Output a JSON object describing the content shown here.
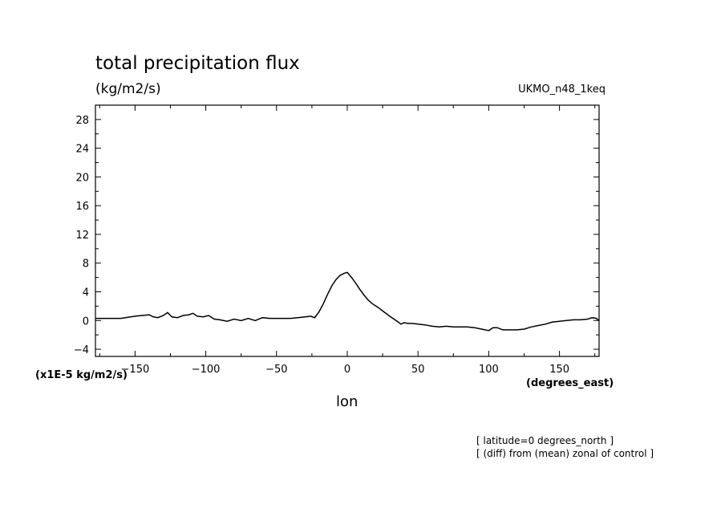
{
  "chart_data": {
    "type": "line",
    "title": "total precipitation flux",
    "units_label": "(kg/m2/s)",
    "model_label": "UKMO_n48_1keq",
    "xlabel": "lon",
    "x_units_label": "(degrees_east)",
    "y_scale_note": "(x1E-5 kg/m2/s)",
    "annotations": [
      "[ latitude=0 degrees_north ]",
      "[ (diff) from (mean) zonal of control ]"
    ],
    "xlim": [
      -178,
      178
    ],
    "ylim": [
      -5,
      30
    ],
    "xticks": [
      -150,
      -100,
      -50,
      0,
      50,
      100,
      150
    ],
    "xtick_labels": [
      "-150",
      "-100",
      "-50",
      "0",
      "50",
      "100",
      "150"
    ],
    "yticks": [
      -4,
      0,
      4,
      8,
      12,
      16,
      20,
      24,
      28
    ],
    "ytick_labels": [
      "-4",
      "0",
      "4",
      "8",
      "12",
      "16",
      "20",
      "24",
      "28"
    ],
    "grid": false,
    "line_color": "#000000",
    "series": [
      {
        "x": [
          -178,
          -170,
          -160,
          -150,
          -145,
          -140,
          -137,
          -134,
          -130,
          -127,
          -124,
          -120,
          -116,
          -112,
          -109,
          -106,
          -102,
          -98,
          -94,
          -90,
          -85,
          -80,
          -75,
          -70,
          -65,
          -60,
          -55,
          -50,
          -45,
          -40,
          -35,
          -30,
          -26,
          -23,
          -20,
          -17,
          -14,
          -11,
          -8,
          -5,
          -2,
          0,
          3,
          6,
          9,
          12,
          15,
          18,
          22,
          26,
          30,
          33,
          36,
          38,
          40,
          43,
          46,
          50,
          55,
          60,
          65,
          70,
          75,
          80,
          85,
          90,
          95,
          100,
          103,
          106,
          110,
          115,
          120,
          125,
          130,
          135,
          140,
          145,
          150,
          155,
          160,
          165,
          170,
          173,
          176,
          178
        ],
        "y": [
          0.3,
          0.3,
          0.3,
          0.6,
          0.7,
          0.8,
          0.5,
          0.4,
          0.7,
          1.1,
          0.5,
          0.4,
          0.7,
          0.8,
          1.0,
          0.6,
          0.5,
          0.7,
          0.2,
          0.1,
          -0.1,
          0.2,
          0.0,
          0.3,
          0.0,
          0.4,
          0.3,
          0.3,
          0.3,
          0.3,
          0.4,
          0.5,
          0.6,
          0.4,
          1.2,
          2.3,
          3.6,
          4.8,
          5.7,
          6.3,
          6.6,
          6.7,
          6.0,
          5.2,
          4.3,
          3.5,
          2.8,
          2.3,
          1.8,
          1.2,
          0.6,
          0.2,
          -0.2,
          -0.5,
          -0.3,
          -0.4,
          -0.4,
          -0.5,
          -0.6,
          -0.8,
          -0.9,
          -0.8,
          -0.9,
          -0.9,
          -0.9,
          -1.0,
          -1.2,
          -1.4,
          -1.0,
          -1.0,
          -1.3,
          -1.3,
          -1.3,
          -1.2,
          -0.9,
          -0.7,
          -0.5,
          -0.2,
          -0.1,
          0.0,
          0.1,
          0.1,
          0.2,
          0.4,
          0.3,
          0.0
        ]
      }
    ]
  }
}
